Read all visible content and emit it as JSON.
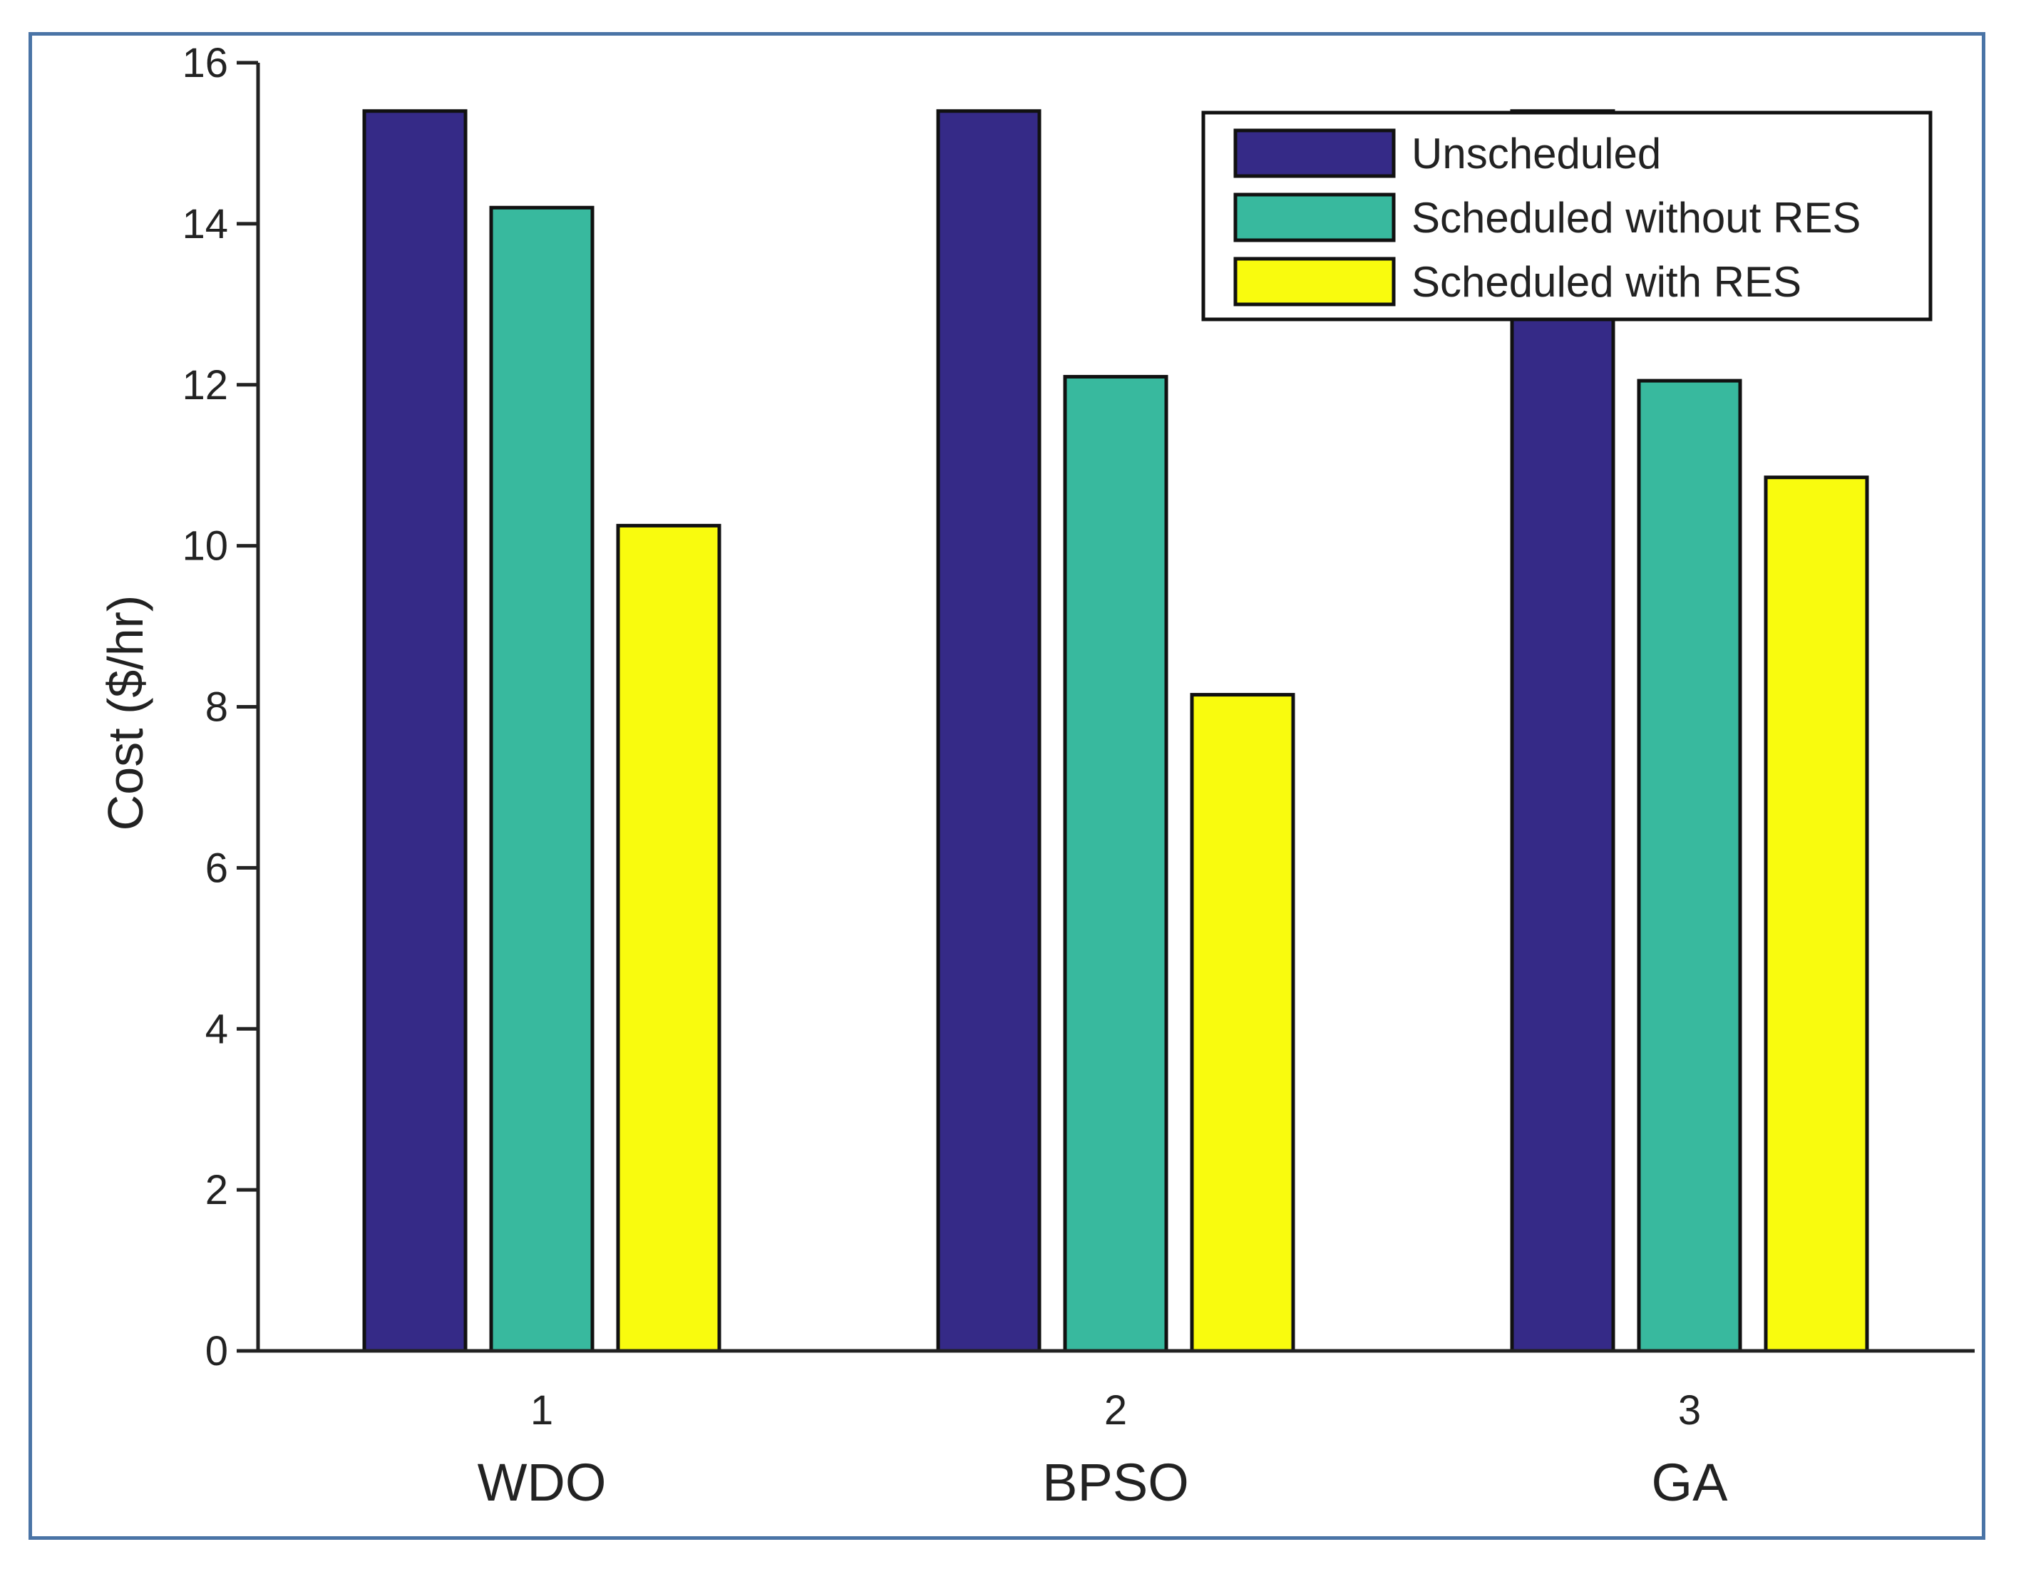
{
  "chart_data": {
    "type": "bar",
    "title": "",
    "xlabel": "",
    "ylabel": "Cost ($/hr)",
    "ylim": [
      0,
      16
    ],
    "yticks": [
      "0",
      "2",
      "4",
      "6",
      "8",
      "10",
      "12",
      "14",
      "16"
    ],
    "categories": [
      "1",
      "2",
      "3"
    ],
    "category_names": [
      "WDO",
      "BPSO",
      "GA"
    ],
    "series": [
      {
        "name": "Unscheduled",
        "values": [
          15.4,
          15.4,
          15.4
        ]
      },
      {
        "name": "Scheduled without RES",
        "values": [
          14.2,
          12.1,
          12.05
        ]
      },
      {
        "name": "Scheduled with RES",
        "values": [
          10.25,
          8.15,
          10.85
        ]
      }
    ],
    "legend": {
      "position": "top-right"
    },
    "grid": false
  },
  "colors": {
    "Unscheduled": "#352a87",
    "Scheduled without RES": "#38b99e",
    "Scheduled with RES": "#f9fb0e",
    "frame": "#4a74a6",
    "axis": "#222222"
  }
}
